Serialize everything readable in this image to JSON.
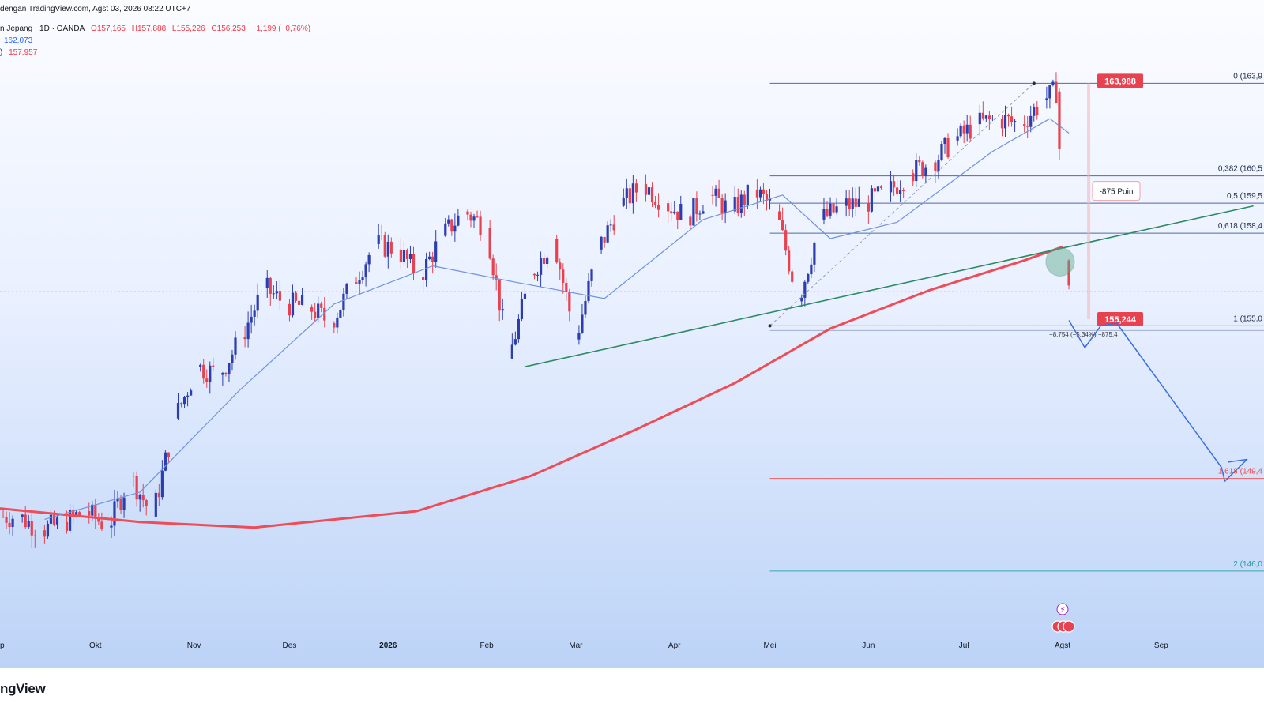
{
  "header": {
    "line1": "dengan TradingView.com, Agst 03, 2026 08:22 UTC+7",
    "symbol": "n Jepang · 1D · OANDA",
    "open": "O157,165",
    "high": "H157,888",
    "low": "L155,226",
    "close": "C156,253",
    "change": "−1,199 (−0,76%)",
    "ma_value_1": "162,073",
    "ma_prefix_2": ")",
    "ma_value_2": "157,957"
  },
  "brand": "ngView",
  "colors": {
    "up": "#2c3db0",
    "down": "#e8414f",
    "ma_fast": "#6f93e0",
    "ma_slow": "#ee4c57",
    "trendline": "#2f8a63",
    "fib_line": "#1e3a8a",
    "fib_ext": "#ef4545",
    "fib_2": "#1b9ea0",
    "projection": "#3b6fe0"
  },
  "chart_data": {
    "type": "line",
    "title": "",
    "x_tick_labels": [
      "ep",
      "Okt",
      "Nov",
      "Des",
      "2026",
      "Feb",
      "Mar",
      "Apr",
      "Mei",
      "Jun",
      "Jul",
      "Agst",
      "Sep"
    ],
    "x_tick_dates": [
      "2025-09-01",
      "2025-10-01",
      "2025-11-01",
      "2025-12-01",
      "2026-01-01",
      "2026-02-01",
      "2026-03-01",
      "2026-04-01",
      "2026-05-01",
      "2026-06-01",
      "2026-07-01",
      "2026-08-01",
      "2026-09-01"
    ],
    "ylim": [
      143.5,
      165.5
    ],
    "series": [
      {
        "type": "candlestick-close",
        "x": [
          "2025-09-02",
          "2025-09-08",
          "2025-09-15",
          "2025-09-22",
          "2025-09-29",
          "2025-10-06",
          "2025-10-13",
          "2025-10-20",
          "2025-10-27",
          "2025-11-03",
          "2025-11-10",
          "2025-11-17",
          "2025-11-24",
          "2025-12-01",
          "2025-12-08",
          "2025-12-15",
          "2025-12-22",
          "2025-12-29",
          "2026-01-05",
          "2026-01-12",
          "2026-01-19",
          "2026-01-26",
          "2026-02-02",
          "2026-02-09",
          "2026-02-16",
          "2026-02-23",
          "2026-03-02",
          "2026-03-09",
          "2026-03-16",
          "2026-03-23",
          "2026-03-30",
          "2026-04-06",
          "2026-04-13",
          "2026-04-20",
          "2026-04-27",
          "2026-05-04",
          "2026-05-11",
          "2026-05-18",
          "2026-05-25",
          "2026-06-01",
          "2026-06-08",
          "2026-06-15",
          "2026-06-22",
          "2026-06-29",
          "2026-07-06",
          "2026-07-13",
          "2026-07-20",
          "2026-07-27",
          "2026-07-31",
          "2026-08-03"
        ],
        "values": [
          148.0,
          147.5,
          147.8,
          148.2,
          147.6,
          149.5,
          148.0,
          151.6,
          153.5,
          153.2,
          154.6,
          156.4,
          155.8,
          155.7,
          155.1,
          156.6,
          158.0,
          157.8,
          156.8,
          158.3,
          159.2,
          158.6,
          153.8,
          156.9,
          158.2,
          154.5,
          157.8,
          159.4,
          160.2,
          159.5,
          159.0,
          159.8,
          159.2,
          160.0,
          159.2,
          155.9,
          158.9,
          159.4,
          159.5,
          159.9,
          160.6,
          161.0,
          161.8,
          162.4,
          162.6,
          162.4,
          163.3,
          163.6,
          157.4,
          156.25
        ]
      },
      {
        "name": "",
        "type": "ma-fast",
        "x": [
          "2025-09-15",
          "2025-10-15",
          "2025-11-15",
          "2025-12-15",
          "2026-01-15",
          "2026-02-10",
          "2026-03-10",
          "2026-04-10",
          "2026-05-05",
          "2026-05-20",
          "2026-06-10",
          "2026-07-10",
          "2026-07-28",
          "2026-08-03"
        ],
        "values": [
          147.9,
          148.9,
          152.6,
          155.8,
          157.2,
          156.6,
          156.0,
          158.9,
          159.8,
          158.2,
          158.8,
          161.4,
          162.6,
          162.07
        ]
      },
      {
        "name": "",
        "type": "ma-slow",
        "x": [
          "2025-09-01",
          "2025-10-15",
          "2025-11-20",
          "2026-01-10",
          "2026-02-15",
          "2026-03-20",
          "2026-04-20",
          "2026-05-20",
          "2026-06-20",
          "2026-07-20",
          "2026-08-01"
        ],
        "values": [
          148.3,
          147.8,
          147.6,
          148.2,
          149.5,
          151.2,
          152.9,
          154.9,
          156.3,
          157.4,
          157.9
        ]
      }
    ],
    "trendline": {
      "from": [
        "2026-02-13",
        153.5
      ],
      "to": [
        "2026-09-30",
        159.4
      ]
    },
    "fibonacci": {
      "levels": [
        {
          "ratio": "0",
          "label": "0 (163,9"
        },
        {
          "ratio": "0,382",
          "label": "0,382 (160,5"
        },
        {
          "ratio": "0,5",
          "label": "0,5 (159,5"
        },
        {
          "ratio": "0,618",
          "label": "0,618 (158,4"
        },
        {
          "ratio": "1",
          "label": "1 (155,0"
        },
        {
          "ratio": "1,618",
          "label": "1,618 (149,4"
        },
        {
          "ratio": "2",
          "label": "2 (146,0"
        }
      ],
      "prices": [
        163.9,
        160.5,
        159.5,
        158.4,
        155.0,
        149.4,
        146.0
      ]
    },
    "price_tags": {
      "upper": "163,988",
      "lower": "155,244"
    },
    "annotation": "-875 Poin",
    "measure_text": "−8,754 (−5,34%) −875,4",
    "current_price": 156.25,
    "projection": {
      "x": [
        "2026-08-03",
        "2026-08-08",
        "2026-08-13",
        "2026-08-18",
        "2026-09-20",
        "2026-09-21",
        "2026-09-28",
        "2026-09-22"
      ],
      "values": [
        155.2,
        154.2,
        155.0,
        155.1,
        149.8,
        149.3,
        150.1,
        150.0
      ]
    },
    "grid": false
  }
}
